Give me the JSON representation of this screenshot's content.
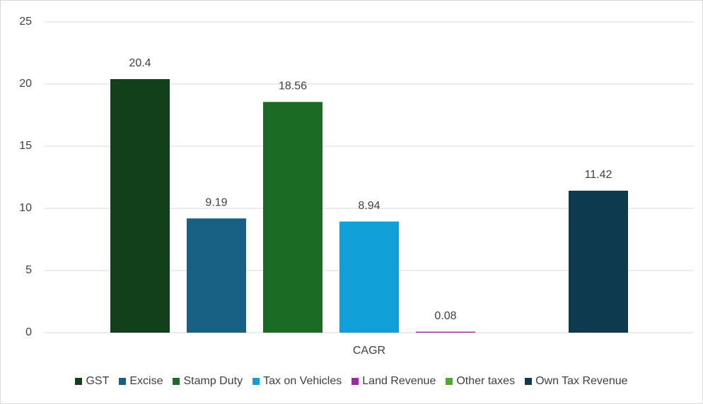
{
  "chart_data": {
    "type": "bar",
    "categories": [
      "CAGR"
    ],
    "series": [
      {
        "name": "GST",
        "color": "#12401a",
        "values": [
          20.4
        ]
      },
      {
        "name": "Excise",
        "color": "#176083",
        "values": [
          9.19
        ]
      },
      {
        "name": "Stamp Duty",
        "color": "#1c6b25",
        "values": [
          18.56
        ]
      },
      {
        "name": "Tax on Vehicles",
        "color": "#119fd8",
        "values": [
          8.94
        ]
      },
      {
        "name": "Land Revenue",
        "color": "#9b2aa5",
        "values": [
          0.08
        ]
      },
      {
        "name": "Other taxes",
        "color": "#4eaa2c",
        "values": [
          null
        ]
      },
      {
        "name": "Own Tax Revenue",
        "color": "#0e3a50",
        "values": [
          11.42
        ]
      }
    ],
    "ylim": [
      0,
      25
    ],
    "yticks": [
      0,
      5,
      10,
      15,
      20,
      25
    ],
    "grid": true,
    "legend": "bottom"
  }
}
